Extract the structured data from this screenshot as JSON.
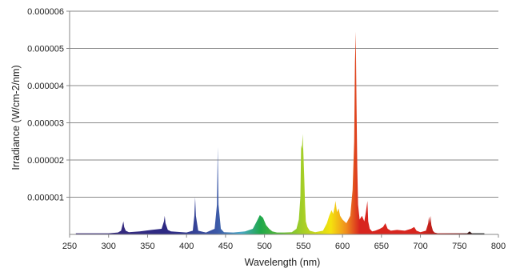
{
  "chart_data": {
    "type": "area",
    "title": "",
    "xlabel": "Wavelength (nm)",
    "ylabel": "Irradiance (W/cm-2/nm)",
    "xlim": [
      250,
      800
    ],
    "ylim": [
      0,
      6e-06
    ],
    "x_ticks": [
      250,
      300,
      350,
      400,
      450,
      500,
      550,
      600,
      650,
      700,
      750,
      800
    ],
    "x_tick_labels": [
      "250",
      "300",
      "350",
      "400",
      "450",
      "500",
      "550",
      "600",
      "650",
      "700",
      "750",
      "800"
    ],
    "y_ticks": [
      1e-06,
      2e-06,
      3e-06,
      4e-06,
      5e-06,
      6e-06
    ],
    "y_tick_labels": [
      "0.000001",
      "0.000002",
      "0.000003",
      "0.000004",
      "0.000005",
      "0.000006"
    ],
    "grid": "horizontal",
    "fill": "spectral gradient",
    "series": [
      {
        "x": [
          258,
          300,
          312,
          316,
          319,
          320,
          322,
          326,
          340,
          355,
          368,
          371,
          372,
          373,
          376,
          380,
          400,
          408,
          410,
          411,
          412,
          415,
          425,
          436,
          439,
          440,
          441,
          444,
          448,
          460,
          475,
          485,
          490,
          494,
          498,
          502,
          506,
          510,
          516,
          525,
          535,
          541,
          544,
          546,
          547,
          548,
          549,
          550,
          551,
          552,
          553,
          555,
          558,
          565,
          575,
          580,
          583,
          586,
          588,
          590,
          591,
          593,
          595,
          597,
          600,
          605,
          610,
          613,
          615,
          616,
          617,
          618,
          619,
          620,
          622,
          625,
          628,
          630,
          632,
          633,
          635,
          638,
          642,
          648,
          652,
          655,
          658,
          662,
          670,
          680,
          688,
          692,
          695,
          700,
          707,
          710,
          711,
          712,
          713,
          714,
          716,
          718,
          722,
          740,
          760,
          763,
          766,
          782
        ],
        "y": [
          3e-08,
          3e-08,
          5e-08,
          1e-07,
          3.5e-07,
          2e-07,
          1e-07,
          6e-08,
          8e-08,
          1.2e-07,
          1.5e-07,
          3.5e-07,
          5e-07,
          3e-07,
          1.2e-07,
          8e-08,
          5e-08,
          1e-07,
          5e-07,
          1e-06,
          5e-07,
          1e-07,
          5e-08,
          1.5e-07,
          8e-07,
          2.35e-06,
          8e-07,
          1.5e-07,
          6e-08,
          5e-08,
          8e-08,
          1.5e-07,
          3.5e-07,
          5.2e-07,
          4.5e-07,
          2.5e-07,
          1.5e-07,
          8e-08,
          5e-08,
          5e-08,
          6e-08,
          1.5e-07,
          4e-07,
          1e-06,
          2.4e-06,
          2.3e-06,
          2.7e-06,
          2.1e-06,
          1.5e-06,
          8e-07,
          3.5e-07,
          2e-07,
          1e-07,
          6e-08,
          1e-07,
          3e-07,
          5e-07,
          6.5e-07,
          5.5e-07,
          7.5e-07,
          9e-07,
          6e-07,
          7e-07,
          5e-07,
          4e-07,
          3e-07,
          5e-07,
          1.2e-06,
          2.5e-06,
          4.6e-06,
          5.45e-06,
          3.5e-06,
          1.8e-06,
          8e-07,
          4e-07,
          5e-07,
          3.5e-07,
          6e-07,
          9e-07,
          3.5e-07,
          1.5e-07,
          8e-08,
          1e-07,
          1.5e-07,
          2e-07,
          3e-07,
          1.5e-07,
          1e-07,
          1.2e-07,
          1e-07,
          1.5e-07,
          2e-07,
          1e-07,
          6e-08,
          1e-07,
          3e-07,
          4.8e-07,
          3e-07,
          5e-07,
          2.5e-07,
          1e-07,
          5e-08,
          3e-08,
          3e-08,
          3e-08,
          8e-08,
          3e-08,
          3e-08
        ]
      }
    ],
    "colors": {
      "gridline": "#8a8a8a",
      "axis": "#888888",
      "violet": "#3b2a7a",
      "indigo": "#2d2a84",
      "blue": "#3d5aa8",
      "cyan": "#4aa8c8",
      "green": "#1fa84a",
      "yellow_green": "#9ccc2a",
      "yellow": "#f4e20e",
      "orange": "#f08c1e",
      "red": "#d8251e",
      "dark_red": "#7a0e0e",
      "black": "#101010"
    }
  }
}
